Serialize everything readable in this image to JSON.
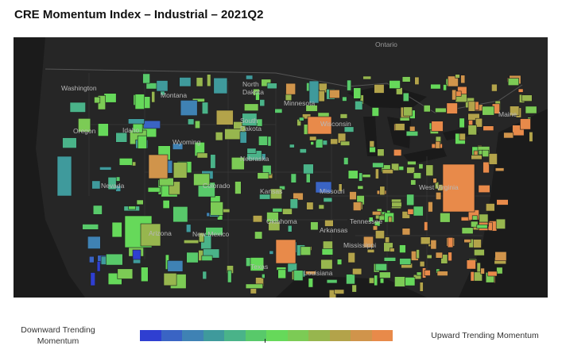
{
  "title": "CRE Momentum Index – Industrial – 2021Q2",
  "map": {
    "labels": [
      {
        "text": "Ontario",
        "kind": "dark"
      },
      {
        "text": "North",
        "kind": "state"
      },
      {
        "text": "Dakota",
        "kind": "state"
      },
      {
        "text": "Minnesota",
        "kind": "state"
      },
      {
        "text": "Montana",
        "kind": "state"
      },
      {
        "text": "South",
        "kind": "state"
      },
      {
        "text": "Dakota",
        "kind": "state"
      },
      {
        "text": "Wyoming",
        "kind": "state"
      },
      {
        "text": "Idaho",
        "kind": "state"
      },
      {
        "text": "Oregon",
        "kind": "state"
      },
      {
        "text": "Nebraska",
        "kind": "state"
      },
      {
        "text": "Nevada",
        "kind": "state"
      },
      {
        "text": "Kansas",
        "kind": "state"
      },
      {
        "text": "Missouri",
        "kind": "state"
      },
      {
        "text": "New Mexico",
        "kind": "state"
      },
      {
        "text": "Arizona",
        "kind": "state"
      },
      {
        "text": "Oklahoma",
        "kind": "state"
      },
      {
        "text": "Arkansas",
        "kind": "state"
      },
      {
        "text": "Tennessee",
        "kind": "state"
      },
      {
        "text": "Mississippi",
        "kind": "state"
      },
      {
        "text": "Texas",
        "kind": "state"
      },
      {
        "text": "Louisiana",
        "kind": "state"
      },
      {
        "text": "West Virginia",
        "kind": "state"
      },
      {
        "text": "Wisconsin",
        "kind": "state"
      },
      {
        "text": "Maine",
        "kind": "state"
      },
      {
        "text": "Washington",
        "kind": "state"
      },
      {
        "text": "Colorado",
        "kind": "state"
      }
    ]
  },
  "legend": {
    "low_label": "Downward Trending Momentum",
    "high_label": "Upward Trending Momentum",
    "colors": [
      "#2f3fd1",
      "#3a64c4",
      "#3f82b4",
      "#3f9a9c",
      "#4ab389",
      "#58c96a",
      "#66d95a",
      "#7ccb55",
      "#97b64e",
      "#b3a34a",
      "#d0944b",
      "#e88a4a"
    ]
  }
}
